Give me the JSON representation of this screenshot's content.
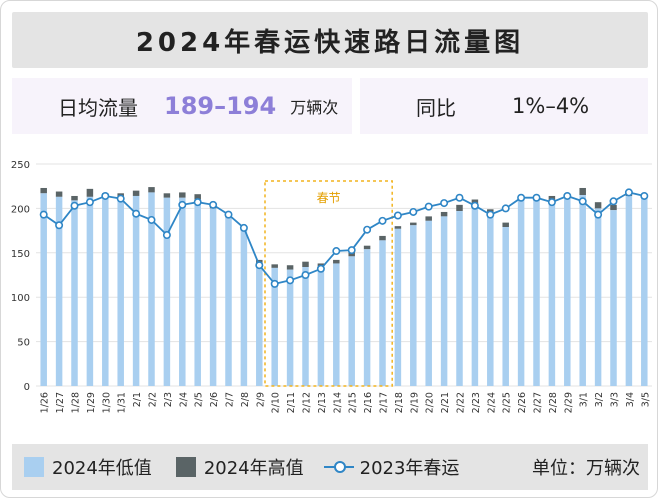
{
  "title": "2024年春运快速路日流量图",
  "stats": {
    "avg_label": "日均流量",
    "avg_value": "189–194",
    "avg_unit": "万辆次",
    "yoy_label": "同比",
    "yoy_value": "1%–4%"
  },
  "legend": {
    "low_2024": "2024年低值",
    "high_2024": "2024年高值",
    "line_2023": "2023年春运",
    "unit_note": "单位：万辆次"
  },
  "colors": {
    "low_bar": "#a9cff0",
    "high_bar": "#5a6466",
    "line": "#2f86c6",
    "highlight_border": "#f2b41f",
    "highlight_label": "#e39f00",
    "stat_value": "#8d7fd8"
  },
  "chart_data": {
    "type": "bar",
    "categories": [
      "1/26",
      "1/27",
      "1/28",
      "1/29",
      "1/30",
      "1/31",
      "2/1",
      "2/2",
      "2/3",
      "2/4",
      "2/5",
      "2/6",
      "2/7",
      "2/8",
      "2/9",
      "2/10",
      "2/11",
      "2/12",
      "2/13",
      "2/14",
      "2/15",
      "2/16",
      "2/17",
      "2/18",
      "2/19",
      "2/20",
      "2/21",
      "2/22",
      "2/23",
      "2/24",
      "2/25",
      "2/26",
      "2/27",
      "2/28",
      "2/29",
      "3/1",
      "3/2",
      "3/3",
      "3/4",
      "3/5"
    ],
    "series": [
      {
        "name": "2024年低值",
        "kind": "bar",
        "values": [
          217,
          213,
          209,
          213,
          215,
          212,
          214,
          218,
          212,
          212,
          210,
          200,
          190,
          175,
          137,
          133,
          131,
          134,
          132,
          138,
          146,
          154,
          164,
          177,
          181,
          186,
          191,
          197,
          203,
          196,
          179,
          211,
          209,
          209,
          213,
          215,
          200,
          198,
          214,
          213
        ]
      },
      {
        "name": "2024年高值",
        "kind": "bar",
        "values": [
          223,
          219,
          214,
          222,
          217,
          217,
          220,
          224,
          217,
          218,
          216,
          205,
          195,
          180,
          142,
          137,
          136,
          140,
          138,
          142,
          151,
          158,
          169,
          180,
          184,
          191,
          196,
          204,
          210,
          199,
          184,
          214,
          212,
          214,
          215,
          223,
          207,
          204,
          218,
          216
        ]
      },
      {
        "name": "2023年春运",
        "kind": "line",
        "values": [
          193,
          181,
          203,
          207,
          214,
          211,
          194,
          187,
          170,
          204,
          207,
          204,
          193,
          178,
          136,
          115,
          119,
          125,
          132,
          152,
          153,
          176,
          186,
          192,
          196,
          202,
          206,
          212,
          203,
          193,
          200,
          212,
          212,
          207,
          214,
          208,
          193,
          208,
          218,
          214
        ]
      }
    ],
    "xlabel": "",
    "ylabel": "",
    "ylim": [
      0,
      250
    ],
    "yticks": [
      0,
      50,
      100,
      150,
      200,
      250
    ],
    "grid": true,
    "highlight": {
      "label": "春节",
      "from": "2/10",
      "to": "2/17"
    },
    "legend_position": "bottom"
  }
}
